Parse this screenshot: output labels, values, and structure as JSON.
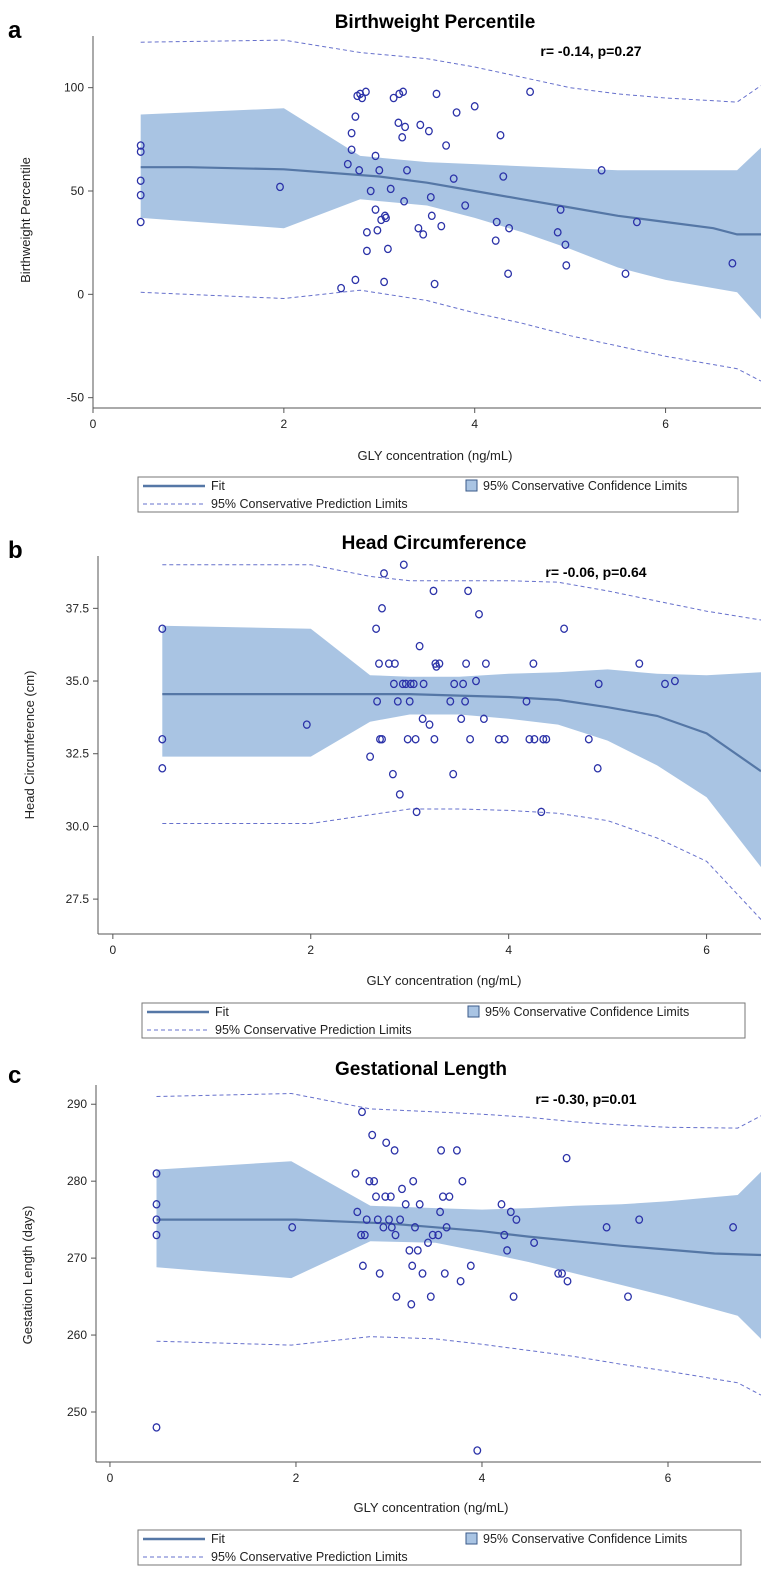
{
  "colors": {
    "band": "#a9c4e3",
    "fit": "#5577a6",
    "dash": "#6670cc",
    "point": "#2b32a8",
    "axis": "#555555"
  },
  "legend": {
    "fit_label": "Fit",
    "ci_label": "95% Conservative Confidence Limits",
    "pi_label": "95% Conservative Prediction Limits"
  },
  "chart_data": [
    {
      "panel": "a",
      "type": "scatter",
      "title": "Birthweight Percentile",
      "annotation": "r= -0.14, p=0.27",
      "xlabel": "GLY concentration (ng/mL)",
      "ylabel": "Birthweight Percentile",
      "xlim": [
        0,
        7
      ],
      "ylim": [
        -55,
        125
      ],
      "xticks": [
        0,
        2,
        4,
        6
      ],
      "yticks": [
        -50,
        0,
        50,
        100
      ],
      "ytick_labels": [
        "-50",
        "0",
        "50",
        "100"
      ],
      "fit": {
        "x": [
          0.5,
          1,
          2,
          3,
          3.5,
          4,
          4.5,
          5,
          5.5,
          6,
          6.5,
          6.75,
          7
        ],
        "y": [
          61.5,
          61.5,
          60.5,
          57,
          54,
          50,
          46,
          42,
          38,
          35,
          32,
          29,
          29
        ]
      },
      "ci": {
        "x": [
          0.5,
          2,
          2.8,
          3.5,
          4,
          4.5,
          5,
          5.5,
          6,
          6.75,
          7
        ],
        "lower": [
          37,
          32,
          46,
          43,
          37,
          30,
          22,
          13,
          7,
          1,
          -12
        ],
        "upper": [
          87,
          90,
          67,
          64,
          63,
          62,
          61,
          60,
          60,
          60,
          71
        ]
      },
      "pi": {
        "x": [
          0.5,
          2,
          2.8,
          3.5,
          4,
          4.5,
          5,
          5.5,
          6,
          6.75,
          7
        ],
        "lower": [
          1,
          -2,
          2,
          -3,
          -9,
          -14,
          -20,
          -25,
          -30,
          -36,
          -42
        ],
        "upper": [
          122,
          123,
          117,
          114,
          110,
          105,
          100,
          97,
          95,
          93,
          101
        ]
      },
      "points": [
        {
          "x": 0.5,
          "y": 72
        },
        {
          "x": 0.5,
          "y": 69
        },
        {
          "x": 0.5,
          "y": 55
        },
        {
          "x": 0.5,
          "y": 48
        },
        {
          "x": 0.5,
          "y": 35
        },
        {
          "x": 1.96,
          "y": 52
        },
        {
          "x": 2.6,
          "y": 3
        },
        {
          "x": 2.67,
          "y": 63
        },
        {
          "x": 2.71,
          "y": 78
        },
        {
          "x": 2.71,
          "y": 70
        },
        {
          "x": 2.75,
          "y": 86
        },
        {
          "x": 2.75,
          "y": 7
        },
        {
          "x": 2.77,
          "y": 96
        },
        {
          "x": 2.79,
          "y": 60
        },
        {
          "x": 2.8,
          "y": 97
        },
        {
          "x": 2.82,
          "y": 95
        },
        {
          "x": 2.86,
          "y": 98
        },
        {
          "x": 2.87,
          "y": 30
        },
        {
          "x": 2.87,
          "y": 21
        },
        {
          "x": 2.91,
          "y": 50
        },
        {
          "x": 2.96,
          "y": 67
        },
        {
          "x": 2.96,
          "y": 41
        },
        {
          "x": 2.98,
          "y": 31
        },
        {
          "x": 3.0,
          "y": 60
        },
        {
          "x": 3.02,
          "y": 36
        },
        {
          "x": 3.05,
          "y": 6
        },
        {
          "x": 3.06,
          "y": 38
        },
        {
          "x": 3.07,
          "y": 37
        },
        {
          "x": 3.09,
          "y": 22
        },
        {
          "x": 3.12,
          "y": 51
        },
        {
          "x": 3.15,
          "y": 95
        },
        {
          "x": 3.2,
          "y": 83
        },
        {
          "x": 3.21,
          "y": 97
        },
        {
          "x": 3.24,
          "y": 76
        },
        {
          "x": 3.25,
          "y": 98
        },
        {
          "x": 3.26,
          "y": 45
        },
        {
          "x": 3.27,
          "y": 81
        },
        {
          "x": 3.29,
          "y": 60
        },
        {
          "x": 3.41,
          "y": 32
        },
        {
          "x": 3.43,
          "y": 82
        },
        {
          "x": 3.46,
          "y": 29
        },
        {
          "x": 3.52,
          "y": 79
        },
        {
          "x": 3.54,
          "y": 47
        },
        {
          "x": 3.55,
          "y": 38
        },
        {
          "x": 3.58,
          "y": 5
        },
        {
          "x": 3.6,
          "y": 97
        },
        {
          "x": 3.65,
          "y": 33
        },
        {
          "x": 3.7,
          "y": 72
        },
        {
          "x": 3.78,
          "y": 56
        },
        {
          "x": 3.81,
          "y": 88
        },
        {
          "x": 3.9,
          "y": 43
        },
        {
          "x": 4.0,
          "y": 91
        },
        {
          "x": 4.22,
          "y": 26
        },
        {
          "x": 4.23,
          "y": 35
        },
        {
          "x": 4.27,
          "y": 77
        },
        {
          "x": 4.3,
          "y": 57
        },
        {
          "x": 4.35,
          "y": 10
        },
        {
          "x": 4.36,
          "y": 32
        },
        {
          "x": 4.58,
          "y": 98
        },
        {
          "x": 4.87,
          "y": 30
        },
        {
          "x": 4.9,
          "y": 41
        },
        {
          "x": 4.95,
          "y": 24
        },
        {
          "x": 4.96,
          "y": 14
        },
        {
          "x": 5.33,
          "y": 60
        },
        {
          "x": 5.58,
          "y": 10
        },
        {
          "x": 5.7,
          "y": 35
        },
        {
          "x": 6.7,
          "y": 15
        }
      ]
    },
    {
      "panel": "b",
      "type": "scatter",
      "title": "Head Circumference",
      "annotation": "r= -0.06, p=0.64",
      "xlabel": "GLY concentration (ng/mL)",
      "ylabel": "Head Circumference (cm)",
      "xlim": [
        -0.15,
        6.55
      ],
      "ylim": [
        26.3,
        39.3
      ],
      "xticks": [
        0,
        2,
        4,
        6
      ],
      "yticks": [
        27.5,
        30,
        32.5,
        35,
        37.5
      ],
      "ytick_labels": [
        "27.5",
        "30.0",
        "32.5",
        "35.0",
        "37.5"
      ],
      "fit": {
        "x": [
          0.5,
          2,
          3,
          3.5,
          4,
          4.5,
          5,
          5.5,
          6,
          6.55
        ],
        "y": [
          34.55,
          34.55,
          34.55,
          34.5,
          34.45,
          34.35,
          34.1,
          33.8,
          33.2,
          31.9
        ]
      },
      "ci": {
        "x": [
          0.5,
          2,
          2.6,
          3,
          3.5,
          4,
          4.5,
          5,
          5.5,
          6,
          6.55
        ],
        "lower": [
          32.4,
          32.4,
          33.6,
          33.85,
          33.85,
          33.7,
          33.5,
          32.95,
          32.1,
          31.0,
          28.6
        ],
        "upper": [
          36.9,
          36.8,
          35.2,
          35.15,
          35.15,
          35.25,
          35.3,
          35.4,
          35.25,
          35.2,
          35.3
        ]
      },
      "pi": {
        "x": [
          0.5,
          2,
          2.6,
          3,
          3.5,
          4,
          4.5,
          5,
          5.5,
          6,
          6.55
        ],
        "lower": [
          30.1,
          30.1,
          30.4,
          30.6,
          30.6,
          30.55,
          30.45,
          30.2,
          29.6,
          28.8,
          26.8
        ],
        "upper": [
          39.0,
          39.0,
          38.6,
          38.45,
          38.45,
          38.45,
          38.4,
          38.1,
          37.75,
          37.4,
          37.1
        ]
      },
      "points": [
        {
          "x": 0.5,
          "y": 36.8
        },
        {
          "x": 0.5,
          "y": 33.0
        },
        {
          "x": 0.5,
          "y": 32.0
        },
        {
          "x": 1.96,
          "y": 33.5
        },
        {
          "x": 2.6,
          "y": 32.4
        },
        {
          "x": 2.66,
          "y": 36.8
        },
        {
          "x": 2.67,
          "y": 34.3
        },
        {
          "x": 2.69,
          "y": 35.6
        },
        {
          "x": 2.7,
          "y": 33.0
        },
        {
          "x": 2.72,
          "y": 33.0
        },
        {
          "x": 2.72,
          "y": 37.5
        },
        {
          "x": 2.74,
          "y": 38.7
        },
        {
          "x": 2.79,
          "y": 35.6
        },
        {
          "x": 2.83,
          "y": 31.8
        },
        {
          "x": 2.84,
          "y": 34.9
        },
        {
          "x": 2.85,
          "y": 35.6
        },
        {
          "x": 2.88,
          "y": 34.3
        },
        {
          "x": 2.9,
          "y": 31.1
        },
        {
          "x": 2.93,
          "y": 34.9
        },
        {
          "x": 2.94,
          "y": 39.0
        },
        {
          "x": 2.96,
          "y": 34.9
        },
        {
          "x": 2.98,
          "y": 33.0
        },
        {
          "x": 3.0,
          "y": 34.3
        },
        {
          "x": 3.01,
          "y": 34.9
        },
        {
          "x": 3.04,
          "y": 34.9
        },
        {
          "x": 3.06,
          "y": 33.0
        },
        {
          "x": 3.07,
          "y": 30.5
        },
        {
          "x": 3.1,
          "y": 36.2
        },
        {
          "x": 3.13,
          "y": 33.7
        },
        {
          "x": 3.14,
          "y": 34.9
        },
        {
          "x": 3.2,
          "y": 33.5
        },
        {
          "x": 3.24,
          "y": 38.1
        },
        {
          "x": 3.25,
          "y": 33.0
        },
        {
          "x": 3.26,
          "y": 35.6
        },
        {
          "x": 3.27,
          "y": 35.5
        },
        {
          "x": 3.3,
          "y": 35.6
        },
        {
          "x": 3.41,
          "y": 34.3
        },
        {
          "x": 3.44,
          "y": 31.8
        },
        {
          "x": 3.45,
          "y": 34.9
        },
        {
          "x": 3.52,
          "y": 33.7
        },
        {
          "x": 3.54,
          "y": 34.9
        },
        {
          "x": 3.56,
          "y": 34.3
        },
        {
          "x": 3.57,
          "y": 35.6
        },
        {
          "x": 3.59,
          "y": 38.1
        },
        {
          "x": 3.61,
          "y": 33.0
        },
        {
          "x": 3.67,
          "y": 35.0
        },
        {
          "x": 3.7,
          "y": 37.3
        },
        {
          "x": 3.75,
          "y": 33.7
        },
        {
          "x": 3.77,
          "y": 35.6
        },
        {
          "x": 3.9,
          "y": 33.0
        },
        {
          "x": 3.96,
          "y": 33.0
        },
        {
          "x": 4.18,
          "y": 34.3
        },
        {
          "x": 4.21,
          "y": 33.0
        },
        {
          "x": 4.25,
          "y": 35.6
        },
        {
          "x": 4.26,
          "y": 33.0
        },
        {
          "x": 4.33,
          "y": 30.5
        },
        {
          "x": 4.35,
          "y": 33.0
        },
        {
          "x": 4.38,
          "y": 33.0
        },
        {
          "x": 4.56,
          "y": 36.8
        },
        {
          "x": 4.81,
          "y": 33.0
        },
        {
          "x": 4.9,
          "y": 32.0
        },
        {
          "x": 4.91,
          "y": 34.9
        },
        {
          "x": 5.32,
          "y": 35.6
        },
        {
          "x": 5.58,
          "y": 34.9
        },
        {
          "x": 5.68,
          "y": 35.0
        }
      ]
    },
    {
      "panel": "c",
      "type": "scatter",
      "title": "Gestational Length",
      "annotation": "r= -0.30, p=0.01",
      "xlabel": "GLY concentration (ng/mL)",
      "ylabel": "Gestation Length (days)",
      "xlim": [
        -0.15,
        7
      ],
      "ylim": [
        243.5,
        292.5
      ],
      "xticks": [
        0,
        2,
        4,
        6
      ],
      "yticks": [
        250,
        260,
        270,
        280,
        290
      ],
      "ytick_labels": [
        "250",
        "260",
        "270",
        "280",
        "290"
      ],
      "fit": {
        "x": [
          0.5,
          2,
          3,
          3.5,
          4,
          4.5,
          5,
          5.5,
          6,
          6.5,
          7
        ],
        "y": [
          275,
          275,
          274.5,
          274,
          273.5,
          272.8,
          272.2,
          271.6,
          271.1,
          270.6,
          270.4
        ]
      },
      "ci": {
        "x": [
          0.5,
          1.95,
          2.8,
          3.5,
          4,
          4.5,
          5,
          5.5,
          6,
          6.75,
          7
        ],
        "lower": [
          268.8,
          267.4,
          272.2,
          272.0,
          270.8,
          269.5,
          268.0,
          266.5,
          265.0,
          262.5,
          259.5
        ],
        "upper": [
          281.5,
          282.6,
          276.8,
          276.5,
          276.3,
          276.5,
          276.8,
          277.0,
          277.4,
          278.2,
          281.2
        ]
      },
      "pi": {
        "x": [
          0.5,
          1.95,
          2.8,
          3.5,
          4,
          4.5,
          5,
          5.5,
          6,
          6.75,
          7
        ],
        "lower": [
          259.2,
          258.7,
          259.8,
          259.5,
          258.8,
          258.0,
          257.2,
          256.2,
          255.3,
          253.8,
          252.2
        ],
        "upper": [
          291.0,
          291.4,
          289.4,
          289.0,
          288.7,
          288.3,
          287.7,
          287.3,
          287.0,
          286.9,
          288.5
        ]
      },
      "points": [
        {
          "x": 0.5,
          "y": 281
        },
        {
          "x": 0.5,
          "y": 277
        },
        {
          "x": 0.5,
          "y": 275
        },
        {
          "x": 0.5,
          "y": 273
        },
        {
          "x": 0.5,
          "y": 248
        },
        {
          "x": 1.96,
          "y": 274
        },
        {
          "x": 2.64,
          "y": 281
        },
        {
          "x": 2.66,
          "y": 276
        },
        {
          "x": 2.7,
          "y": 273
        },
        {
          "x": 2.71,
          "y": 289
        },
        {
          "x": 2.72,
          "y": 269
        },
        {
          "x": 2.74,
          "y": 273
        },
        {
          "x": 2.76,
          "y": 275
        },
        {
          "x": 2.79,
          "y": 280
        },
        {
          "x": 2.82,
          "y": 286
        },
        {
          "x": 2.84,
          "y": 280
        },
        {
          "x": 2.86,
          "y": 278
        },
        {
          "x": 2.88,
          "y": 275
        },
        {
          "x": 2.9,
          "y": 268
        },
        {
          "x": 2.94,
          "y": 274
        },
        {
          "x": 2.96,
          "y": 278
        },
        {
          "x": 2.97,
          "y": 285
        },
        {
          "x": 3.0,
          "y": 275
        },
        {
          "x": 3.02,
          "y": 278
        },
        {
          "x": 3.03,
          "y": 274
        },
        {
          "x": 3.06,
          "y": 284
        },
        {
          "x": 3.07,
          "y": 273
        },
        {
          "x": 3.08,
          "y": 265
        },
        {
          "x": 3.12,
          "y": 275
        },
        {
          "x": 3.14,
          "y": 279
        },
        {
          "x": 3.18,
          "y": 277
        },
        {
          "x": 3.22,
          "y": 271
        },
        {
          "x": 3.24,
          "y": 264
        },
        {
          "x": 3.25,
          "y": 269
        },
        {
          "x": 3.26,
          "y": 280
        },
        {
          "x": 3.28,
          "y": 274
        },
        {
          "x": 3.31,
          "y": 271
        },
        {
          "x": 3.33,
          "y": 277
        },
        {
          "x": 3.36,
          "y": 268
        },
        {
          "x": 3.42,
          "y": 272
        },
        {
          "x": 3.45,
          "y": 265
        },
        {
          "x": 3.47,
          "y": 273
        },
        {
          "x": 3.53,
          "y": 273
        },
        {
          "x": 3.55,
          "y": 276
        },
        {
          "x": 3.56,
          "y": 284
        },
        {
          "x": 3.58,
          "y": 278
        },
        {
          "x": 3.6,
          "y": 268
        },
        {
          "x": 3.62,
          "y": 274
        },
        {
          "x": 3.65,
          "y": 278
        },
        {
          "x": 3.73,
          "y": 284
        },
        {
          "x": 3.77,
          "y": 267
        },
        {
          "x": 3.79,
          "y": 280
        },
        {
          "x": 3.88,
          "y": 269
        },
        {
          "x": 3.95,
          "y": 245
        },
        {
          "x": 4.21,
          "y": 277
        },
        {
          "x": 4.24,
          "y": 273
        },
        {
          "x": 4.27,
          "y": 271
        },
        {
          "x": 4.31,
          "y": 276
        },
        {
          "x": 4.34,
          "y": 265
        },
        {
          "x": 4.37,
          "y": 275
        },
        {
          "x": 4.56,
          "y": 272
        },
        {
          "x": 4.82,
          "y": 268
        },
        {
          "x": 4.86,
          "y": 268
        },
        {
          "x": 4.91,
          "y": 283
        },
        {
          "x": 4.92,
          "y": 267
        },
        {
          "x": 5.34,
          "y": 274
        },
        {
          "x": 5.57,
          "y": 265
        },
        {
          "x": 5.69,
          "y": 275
        },
        {
          "x": 6.7,
          "y": 274
        }
      ]
    }
  ]
}
